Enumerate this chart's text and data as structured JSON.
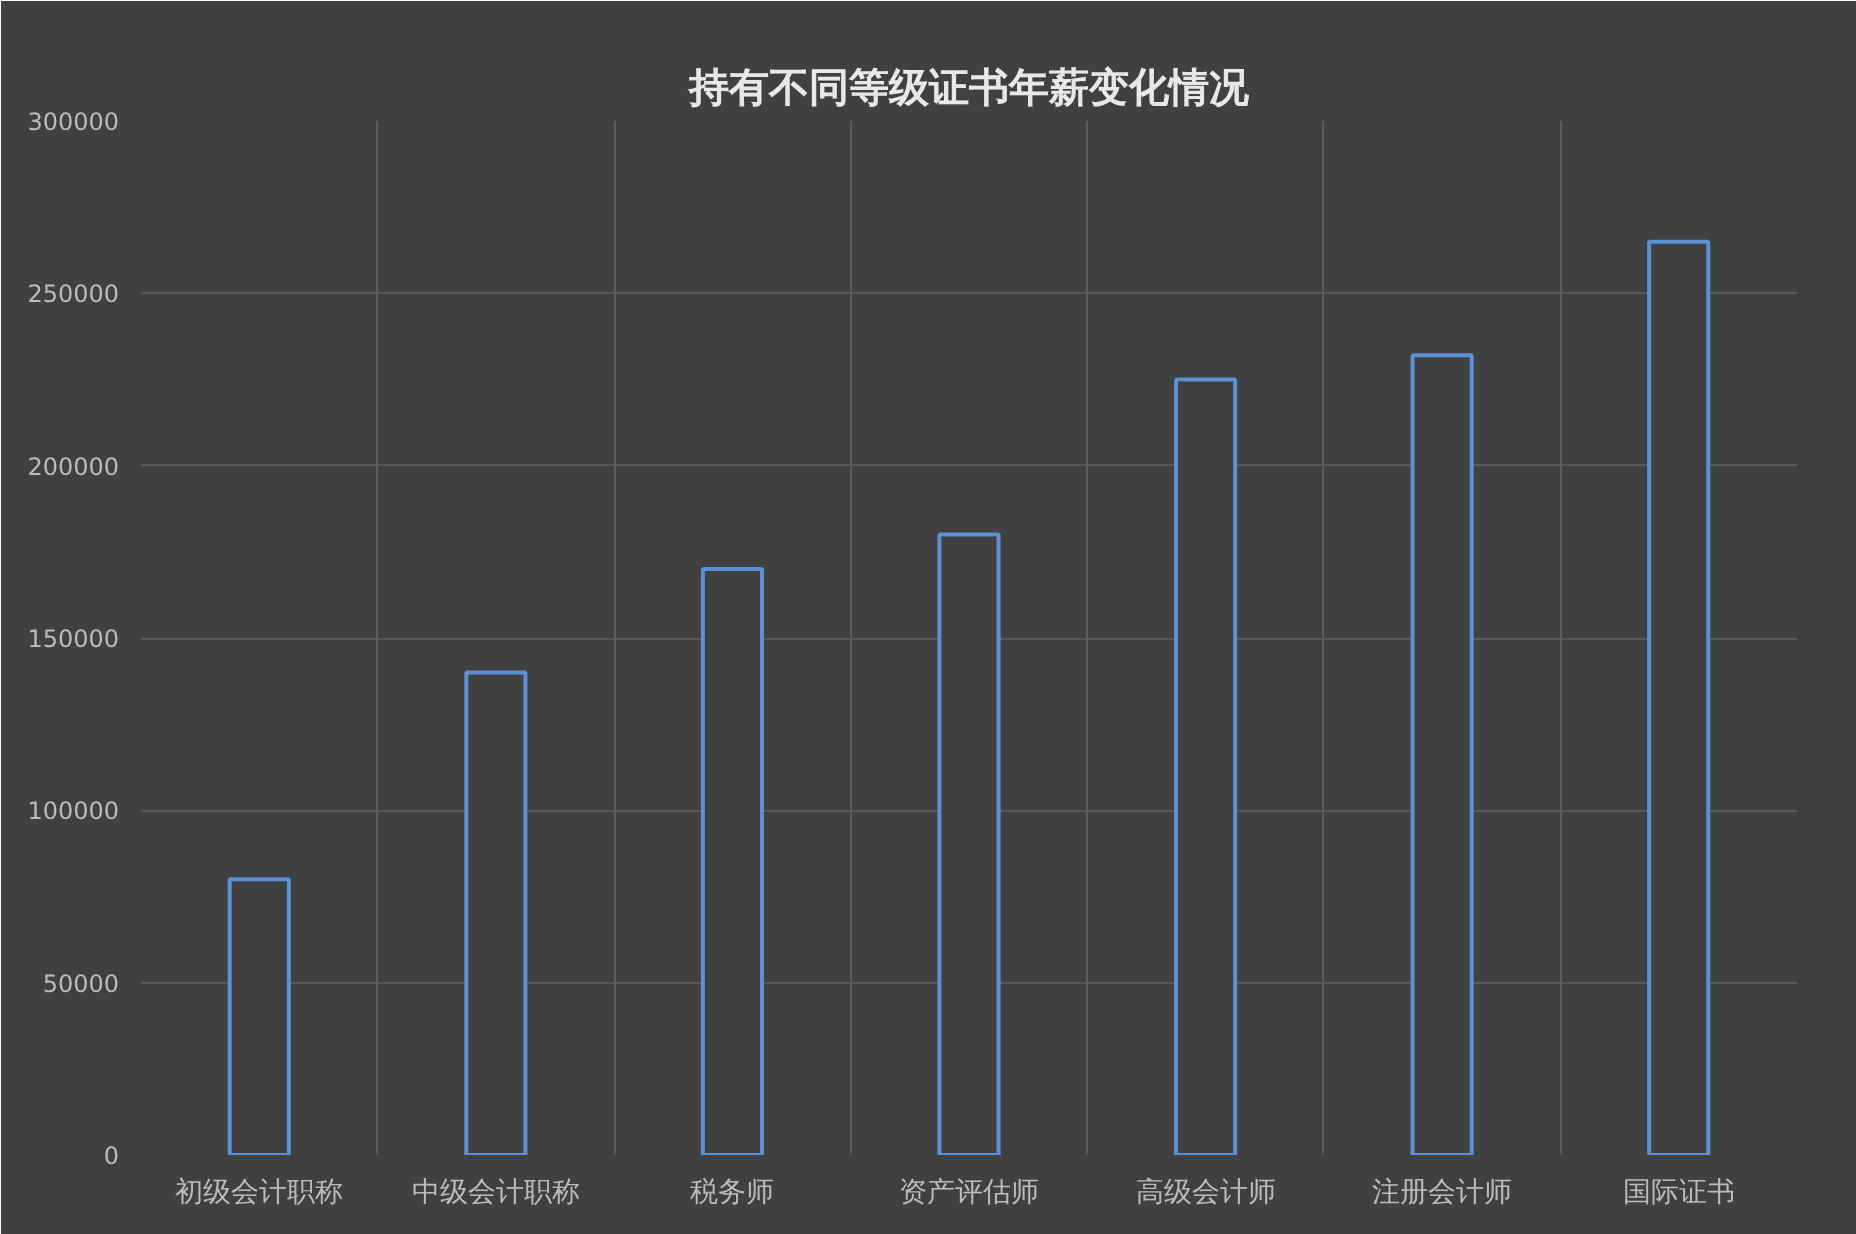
{
  "chart_data": {
    "type": "bar",
    "title": "持有不同等级证书年薪变化情况",
    "categories": [
      "初级会计职称",
      "中级会计职称",
      "税务师",
      "资产评估师",
      "高级会计师",
      "注册会计师",
      "国际证书"
    ],
    "values": [
      80000,
      140000,
      170000,
      180000,
      225000,
      232000,
      265000
    ],
    "color": "#5b8fd6",
    "ylim": [
      0,
      300000
    ],
    "yticks": [
      0,
      50000,
      100000,
      150000,
      200000,
      250000,
      300000
    ],
    "grid": true
  }
}
